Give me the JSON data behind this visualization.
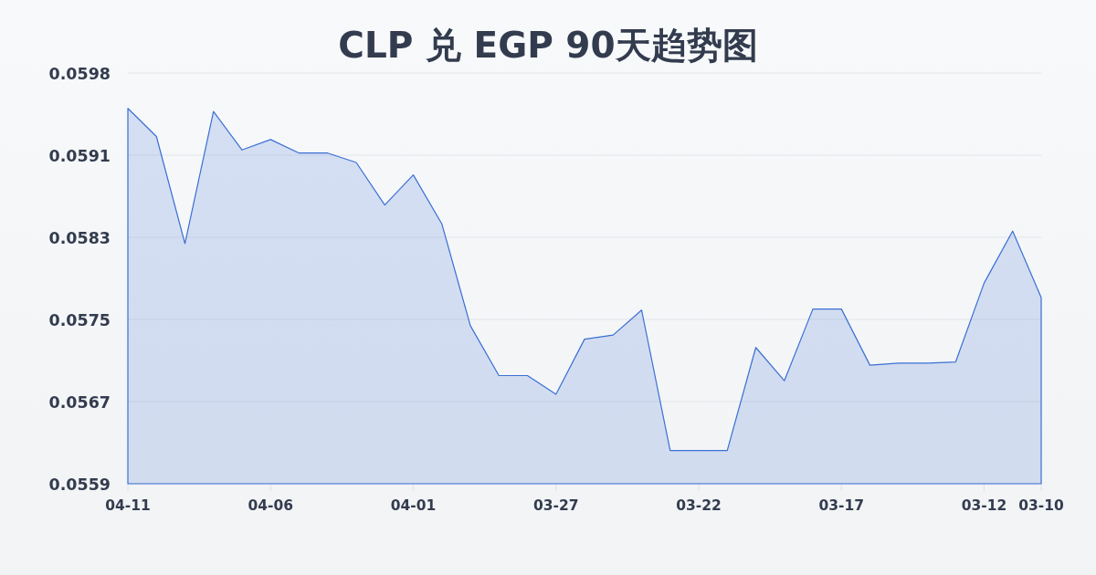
{
  "chart_data": {
    "type": "area",
    "title": "CLP 兑 EGP 90天趋势图",
    "x": [
      "--04-11",
      "--04-10",
      "--04-09",
      "--04-08",
      "--04-07",
      "--04-06",
      "--04-05",
      "--04-04",
      "--04-03",
      "--04-02",
      "--04-01",
      "--03-31",
      "--03-30",
      "--03-29",
      "--03-28",
      "--03-27",
      "--03-26",
      "--03-25",
      "--03-24",
      "--03-23",
      "--03-22",
      "--03-21",
      "--03-20",
      "--03-19",
      "--03-18",
      "--03-17",
      "--03-16",
      "--03-15",
      "--03-14",
      "--03-13",
      "--03-12",
      "--03-11",
      "--03-10"
    ],
    "values": [
      0.0595,
      0.05923,
      0.0582,
      0.05947,
      0.0591,
      0.0592,
      0.05907,
      0.05907,
      0.05898,
      0.05857,
      0.05886,
      0.05839,
      0.05741,
      0.05693,
      0.05693,
      0.05675,
      0.05728,
      0.05732,
      0.05756,
      0.05621,
      0.05621,
      0.05621,
      0.0572,
      0.05688,
      0.05757,
      0.05757,
      0.05703,
      0.05705,
      0.05705,
      0.05706,
      0.05782,
      0.05832,
      0.05768
    ],
    "color": "#3b6fd4",
    "xlim": [
      "--04-11",
      "--03-10"
    ],
    "xticks": [
      {
        "value": "--04-11",
        "label": "04-11"
      },
      {
        "value": "--04-06",
        "label": "04-06"
      },
      {
        "value": "--04-01",
        "label": "04-01"
      },
      {
        "value": "--03-27",
        "label": "03-27"
      },
      {
        "value": "--03-22",
        "label": "03-22"
      },
      {
        "value": "--03-17",
        "label": "03-17"
      },
      {
        "value": "--03-12",
        "label": "03-12"
      },
      {
        "value": "--03-10",
        "label": "03-10"
      }
    ],
    "ylim": [
      0.05589,
      0.05984
    ],
    "yticks": [
      {
        "value": 0.05589,
        "label": "0.0559"
      },
      {
        "value": 0.05668,
        "label": "0.0567"
      },
      {
        "value": 0.05747,
        "label": "0.0575"
      },
      {
        "value": 0.05826,
        "label": "0.0583"
      },
      {
        "value": 0.05905,
        "label": "0.0591"
      },
      {
        "value": 0.05984,
        "label": "0.0598"
      }
    ],
    "grid": "y"
  }
}
